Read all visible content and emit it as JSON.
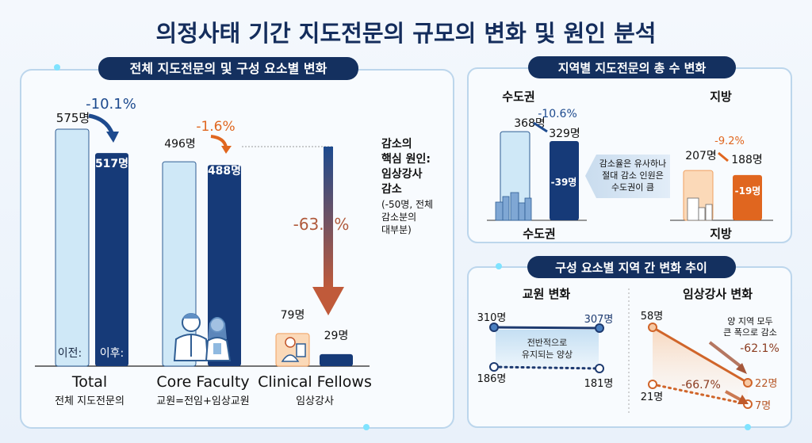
{
  "title": "의정사태 기간 지도전문의 규모의 변화 및 원인 분석",
  "colors": {
    "navy": "#163a78",
    "light_blue": "#cfe8f7",
    "orange": "#e0661f",
    "light_orange": "#fbd9b8",
    "brown_red": "#b05a3c"
  },
  "overall": {
    "header": "전체 지도전문의 및 구성 요소별 변화",
    "before_label": "이전:",
    "after_label": "이후:",
    "groups": [
      {
        "name": "Total",
        "subtitle": "전체 지도전문의",
        "before": "575명",
        "after": "517명",
        "change": "-10.1%"
      },
      {
        "name": "Core Faculty",
        "subtitle": "교원=전임+임상교원",
        "before": "496명",
        "after": "488명",
        "change": "-1.6%"
      },
      {
        "name": "Clinical Fellows",
        "subtitle": "임상강사",
        "before": "79명",
        "after": "29명",
        "change": "-63.3%"
      }
    ],
    "annotation": [
      "감소의",
      "핵심 원인:",
      "임상강사",
      "감소",
      "(-50명, 전체",
      "감소분의",
      "대부분)"
    ],
    "icons": [
      "doctors-icon",
      "clinical-fellow-icon",
      "arrow-down-icon"
    ]
  },
  "regional": {
    "header": "지역별 지도전문의 총 수 변화",
    "capital": {
      "title": "수도권",
      "label": "수도권",
      "before": "368명",
      "after": "329명",
      "change": "-10.6%",
      "diff": "-39명"
    },
    "local": {
      "title": "지방",
      "label": "지방",
      "before": "207명",
      "after": "188명",
      "change": "-9.2%",
      "diff": "-19명"
    },
    "callout": [
      "감소율은 유사하나",
      "절대 감소 인원은",
      "수도권이 큼"
    ]
  },
  "trend": {
    "header": "구성 요소별 지역 간 변화 추이",
    "faculty": {
      "title": "교원 변화",
      "capital_before": "310명",
      "capital_after": "307명",
      "local_before": "186명",
      "local_after": "181명",
      "note": [
        "전반적으로",
        "유지되는 양상"
      ]
    },
    "fellows": {
      "title": "임상강사 변화",
      "capital_before": "58명",
      "capital_after": "22명",
      "local_before": "21명",
      "local_after": "7명",
      "capital_change": "-62.1%",
      "local_change": "-66.7%",
      "note": [
        "양 지역 모두",
        "큰 폭으로 감소"
      ]
    }
  },
  "chart_data": [
    {
      "type": "bar",
      "categories": [
        "Total",
        "Core Faculty",
        "Clinical Fellows"
      ],
      "series": [
        {
          "name": "이전",
          "values": [
            575,
            496,
            79
          ]
        },
        {
          "name": "이후",
          "values": [
            517,
            488,
            29
          ]
        }
      ],
      "title": "전체 지도전문의 및 구성 요소별 변화"
    },
    {
      "type": "bar",
      "categories": [
        "수도권",
        "지방"
      ],
      "series": [
        {
          "values": [
            368,
            207
          ]
        },
        {
          "values": [
            329,
            188
          ]
        }
      ],
      "title": "지역별 지도전문의 총 수 변화"
    },
    {
      "type": "line",
      "title": "교원 변화",
      "series": [
        {
          "values": [
            310,
            307
          ]
        },
        {
          "values": [
            186,
            181
          ]
        }
      ]
    },
    {
      "type": "line",
      "title": "임상강사 변화",
      "series": [
        {
          "values": [
            58,
            22
          ]
        },
        {
          "values": [
            21,
            7
          ]
        }
      ]
    }
  ]
}
